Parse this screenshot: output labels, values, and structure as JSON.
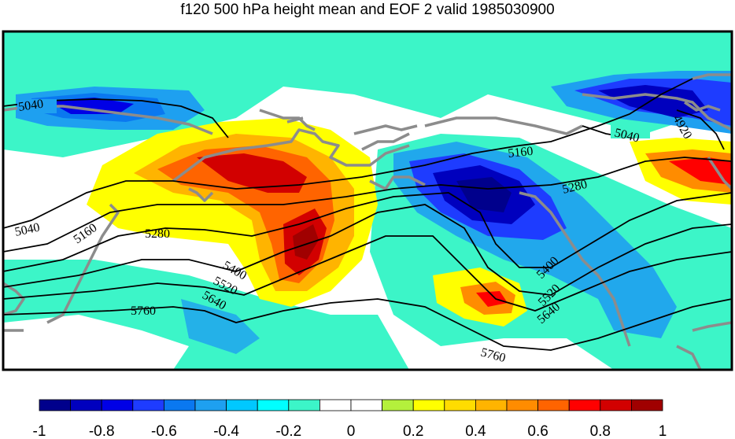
{
  "title": "f120 500 hPa height mean and EOF 2 valid 1985030900",
  "colorbar": {
    "ticks": [
      "-1",
      "-0.8",
      "-0.6",
      "-0.4",
      "-0.2",
      "0",
      "0.2",
      "0.4",
      "0.6",
      "0.8",
      "1"
    ],
    "colors": [
      "#00008c",
      "#0000be",
      "#0000e6",
      "#1e3cff",
      "#0a78f0",
      "#1ea0f0",
      "#00c8ff",
      "#00ffff",
      "#3cf5c8",
      "#ffffff",
      "#ffffff",
      "#b4f03c",
      "#ffff00",
      "#ffdc00",
      "#ffb400",
      "#ff8c00",
      "#ff6400",
      "#ff0000",
      "#d20000",
      "#a00000"
    ]
  },
  "contours": [
    {
      "label": "5040"
    },
    {
      "label": "5040"
    },
    {
      "label": "5040"
    },
    {
      "label": "4920"
    },
    {
      "label": "5160"
    },
    {
      "label": "5160"
    },
    {
      "label": "5280"
    },
    {
      "label": "5280"
    },
    {
      "label": "5400"
    },
    {
      "label": "5400"
    },
    {
      "label": "5520"
    },
    {
      "label": "5520"
    },
    {
      "label": "5640"
    },
    {
      "label": "5640"
    },
    {
      "label": "5760"
    },
    {
      "label": "5760"
    }
  ]
}
